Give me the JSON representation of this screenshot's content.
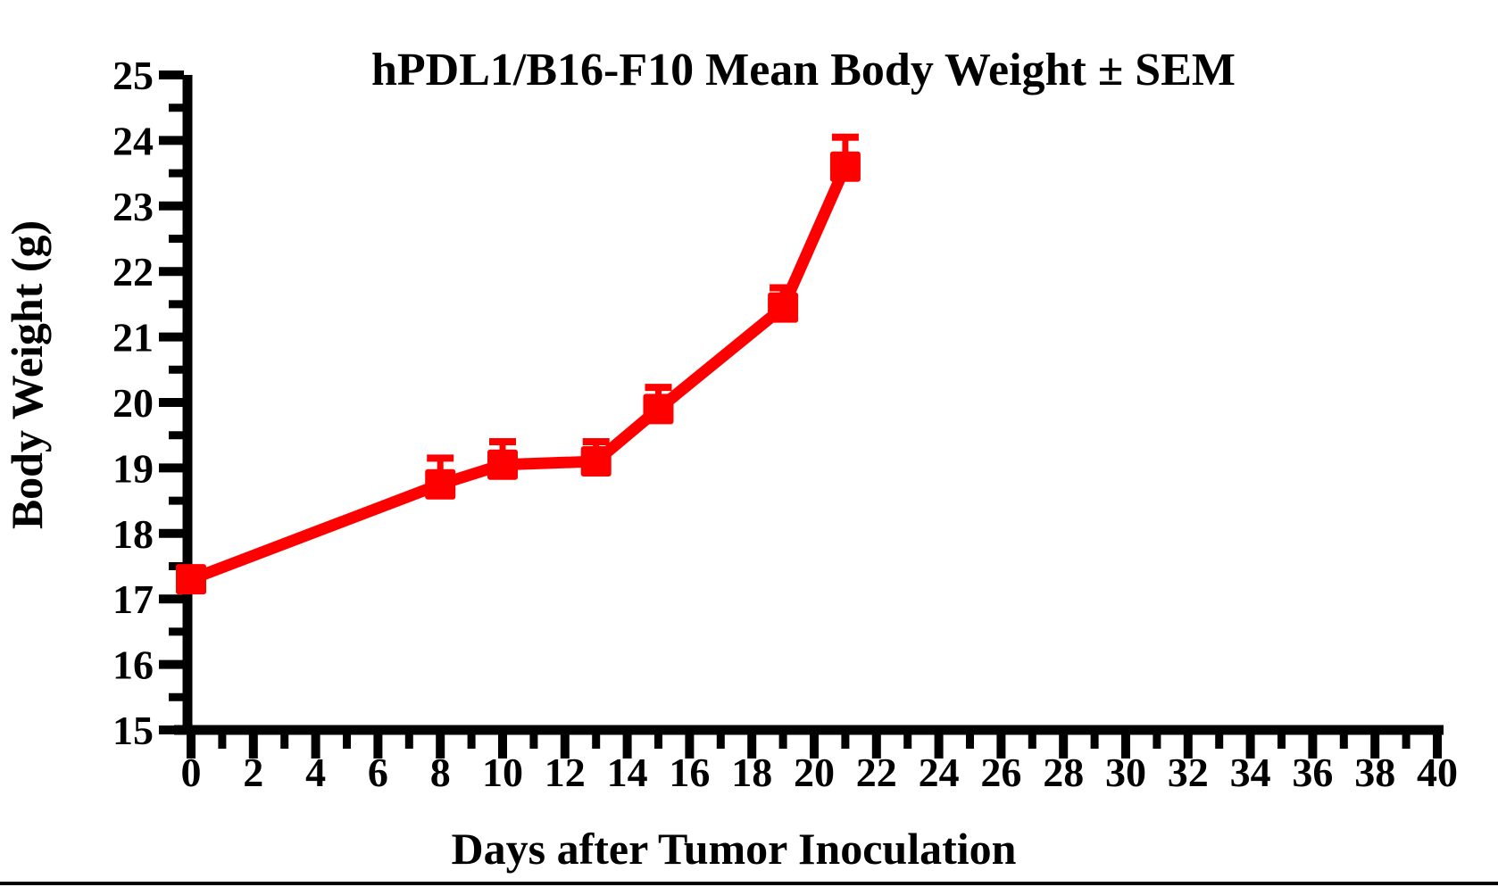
{
  "figure": {
    "background": "#ffffff",
    "bottom_rule_color": "#000000"
  },
  "chart_data": {
    "type": "line",
    "title": "hPDL1/B16-F10 Mean Body Weight ± SEM",
    "xlabel": "Days after Tumor Inoculation",
    "ylabel": "Body Weight (g)",
    "grid": false,
    "legend": "none",
    "error_bars": "upper SEM caps only",
    "axis_color": "#000000",
    "x_axis": {
      "min": 0,
      "max": 40,
      "major_tick_step": 2,
      "minor_tick_step": 1,
      "tick_labels": [
        "0",
        "2",
        "4",
        "6",
        "8",
        "10",
        "12",
        "14",
        "16",
        "18",
        "20",
        "22",
        "24",
        "26",
        "28",
        "30",
        "32",
        "34",
        "36",
        "38",
        "40"
      ]
    },
    "y_axis": {
      "min": 15,
      "max": 25,
      "major_tick_step": 1,
      "minor_tick_step": 0.5,
      "tick_labels": [
        "15",
        "16",
        "17",
        "18",
        "19",
        "20",
        "21",
        "22",
        "23",
        "24",
        "25"
      ]
    },
    "series": [
      {
        "name": "hPDL1/B16-F10",
        "color": "#ff0000",
        "marker": "square",
        "x": [
          0,
          8,
          10,
          13,
          15,
          19,
          21
        ],
        "y": [
          17.3,
          18.75,
          19.05,
          19.1,
          19.9,
          21.45,
          23.6
        ],
        "sem": [
          0.1,
          0.4,
          0.35,
          0.3,
          0.33,
          0.3,
          0.45
        ]
      }
    ]
  }
}
